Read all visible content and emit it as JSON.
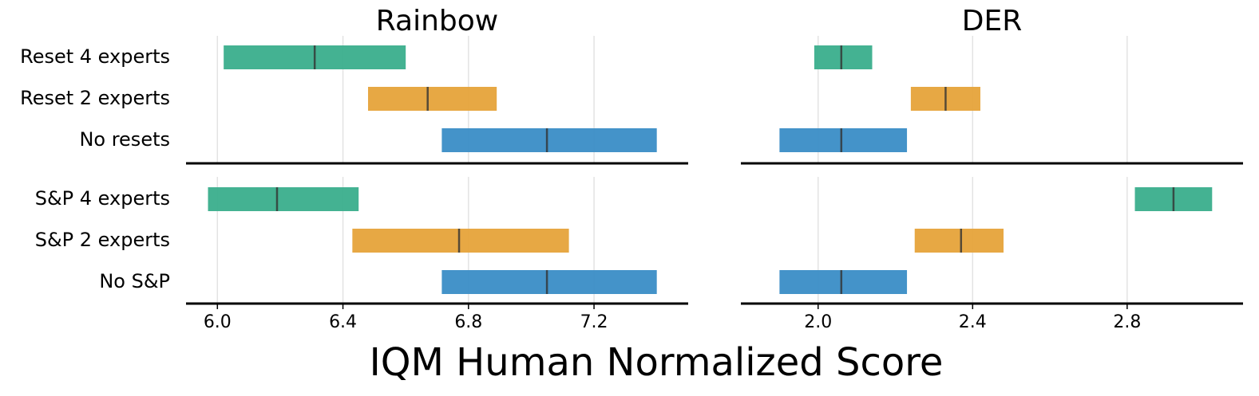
{
  "xlabel": "IQM Human Normalized Score",
  "row_categories": [
    [
      "Reset 4 experts",
      "Reset 2 experts",
      "No resets"
    ],
    [
      "S&P 4 experts",
      "S&P 2 experts",
      "No S&P"
    ]
  ],
  "colors": [
    "#3aae8c",
    "#e6a33a",
    "#3a8dc6"
  ],
  "grid": true,
  "chart_data": [
    {
      "type": "interval",
      "title": "Rainbow",
      "xlim": [
        5.9,
        7.5
      ],
      "xticks": [
        {
          "value": 6.0,
          "label": "6.0"
        },
        6.4,
        6.8,
        7.2
      ],
      "groups": [
        {
          "low": [
            6.02,
            6.48,
            6.715
          ],
          "high": [
            6.6,
            6.89,
            7.4
          ],
          "median": [
            6.31,
            6.67,
            7.05
          ]
        },
        {
          "low": [
            5.97,
            6.43,
            6.715
          ],
          "high": [
            6.45,
            7.12,
            7.4
          ],
          "median": [
            6.19,
            6.77,
            7.05
          ]
        }
      ]
    },
    {
      "type": "interval",
      "title": "DER",
      "xlim": [
        1.8,
        3.1
      ],
      "xticks": [
        {
          "value": 2.0,
          "label": "2.0"
        },
        2.4,
        2.8
      ],
      "groups": [
        {
          "low": [
            1.99,
            2.24,
            1.9
          ],
          "high": [
            2.14,
            2.42,
            2.23
          ],
          "median": [
            2.06,
            2.33,
            2.06
          ]
        },
        {
          "low": [
            2.82,
            2.25,
            1.9
          ],
          "high": [
            3.02,
            2.48,
            2.23
          ],
          "median": [
            2.92,
            2.37,
            2.06
          ]
        }
      ]
    }
  ]
}
